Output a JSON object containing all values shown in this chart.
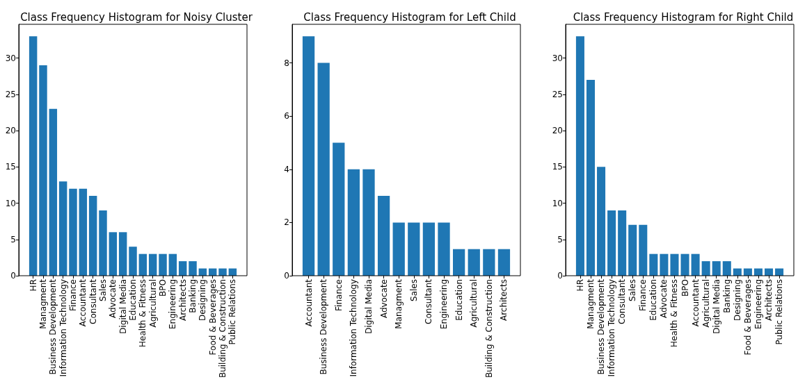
{
  "chart_data": [
    {
      "type": "bar",
      "title": "Class Frequency Histogram for Noisy Cluster",
      "categories": [
        "HR",
        "Managment",
        "Business Development",
        "Information Technology",
        "Finance",
        "Accountant",
        "Consultant",
        "Sales",
        "Advocate",
        "Digital Media",
        "Education",
        "Health & Fitness",
        "Agricultural",
        "BPO",
        "Engineering",
        "Architects",
        "Banking",
        "Designing",
        "Food & Beverages",
        "Building & Construction",
        "Public Relations"
      ],
      "values": [
        33,
        29,
        23,
        13,
        12,
        12,
        11,
        9,
        6,
        6,
        4,
        3,
        3,
        3,
        3,
        2,
        2,
        1,
        1,
        1,
        1
      ],
      "color": "#1f77b4",
      "ylim": [
        0,
        34.65
      ],
      "yticks": [
        0,
        5,
        10,
        15,
        20,
        25,
        30
      ]
    },
    {
      "type": "bar",
      "title": "Class Frequency Histogram for Left Child",
      "categories": [
        "Accountant",
        "Business Development",
        "Finance",
        "Information Technology",
        "Digital Media",
        "Advocate",
        "Managment",
        "Sales",
        "Consultant",
        "Engineering",
        "Education",
        "Agricultural",
        "Building & Construction",
        "Architects"
      ],
      "values": [
        9,
        8,
        5,
        4,
        4,
        3,
        2,
        2,
        2,
        2,
        1,
        1,
        1,
        1
      ],
      "color": "#1f77b4",
      "ylim": [
        0,
        9.45
      ],
      "yticks": [
        0,
        2,
        4,
        6,
        8
      ]
    },
    {
      "type": "bar",
      "title": "Class Frequency Histogram for Right Child",
      "categories": [
        "HR",
        "Managment",
        "Business Development",
        "Information Technology",
        "Consultant",
        "Sales",
        "Finance",
        "Education",
        "Advocate",
        "Health & Fitness",
        "BPO",
        "Accountant",
        "Agricultural",
        "Digital Media",
        "Banking",
        "Designing",
        "Food & Beverages",
        "Engineering",
        "Architects",
        "Public Relations"
      ],
      "values": [
        33,
        27,
        15,
        9,
        9,
        7,
        7,
        3,
        3,
        3,
        3,
        3,
        2,
        2,
        2,
        1,
        1,
        1,
        1,
        1
      ],
      "color": "#1f77b4",
      "ylim": [
        0,
        34.65
      ],
      "yticks": [
        0,
        5,
        10,
        15,
        20,
        25,
        30
      ]
    }
  ]
}
